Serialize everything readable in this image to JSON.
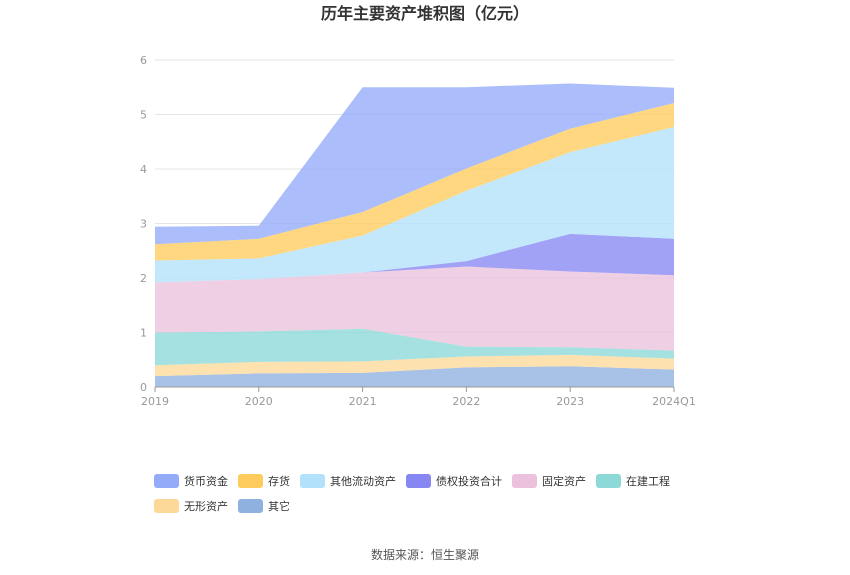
{
  "chart_data": {
    "type": "area",
    "stacked": true,
    "title": "历年主要资产堆积图（亿元）",
    "categories": [
      "2019",
      "2020",
      "2021",
      "2022",
      "2023",
      "2024Q1"
    ],
    "ylim": [
      0,
      6
    ],
    "yticks": [
      "0",
      "1",
      "2",
      "3",
      "4",
      "5",
      "6"
    ],
    "series": [
      {
        "name": "其它",
        "color": "#8fb1e0",
        "values": [
          0.2,
          0.25,
          0.26,
          0.36,
          0.38,
          0.32
        ]
      },
      {
        "name": "无形资产",
        "color": "#fcd999",
        "values": [
          0.2,
          0.21,
          0.21,
          0.2,
          0.21,
          0.2
        ]
      },
      {
        "name": "在建工程",
        "color": "#8dd9d8",
        "values": [
          0.6,
          0.56,
          0.6,
          0.18,
          0.14,
          0.15
        ]
      },
      {
        "name": "固定资产",
        "color": "#ebc1dd",
        "values": [
          0.92,
          0.96,
          1.03,
          1.47,
          1.39,
          1.38
        ]
      },
      {
        "name": "债权投资合计",
        "color": "#8787f3",
        "values": [
          0,
          0,
          0,
          0.1,
          0.69,
          0.67
        ]
      },
      {
        "name": "其他流动资产",
        "color": "#b2e1fb",
        "values": [
          0.4,
          0.38,
          0.68,
          1.29,
          1.5,
          2.05
        ]
      },
      {
        "name": "存货",
        "color": "#fecc5c",
        "values": [
          0.3,
          0.36,
          0.43,
          0.41,
          0.43,
          0.44
        ]
      },
      {
        "name": "货币资金",
        "color": "#93abf9",
        "values": [
          0.32,
          0.24,
          2.29,
          1.49,
          0.83,
          0.28
        ]
      }
    ],
    "legend_order": [
      "货币资金",
      "存货",
      "其他流动资产",
      "债权投资合计",
      "固定资产",
      "在建工程",
      "无形资产",
      "其它"
    ],
    "legend_position": "bottom"
  },
  "source": "数据来源：恒生聚源"
}
